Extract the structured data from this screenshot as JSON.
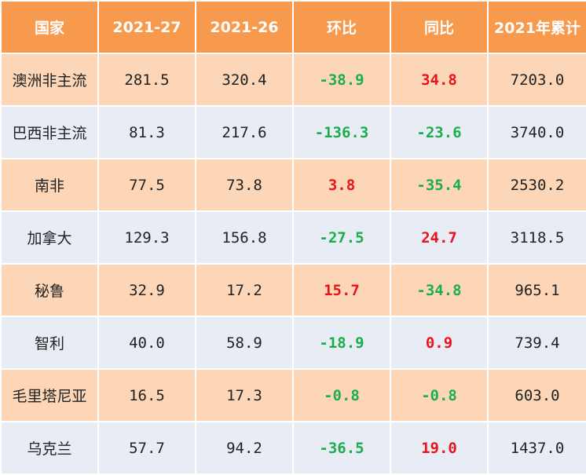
{
  "headers": [
    "国家",
    "2021-27",
    "2021-26",
    "环比",
    "同比",
    "2021年累计"
  ],
  "rows": [
    {
      "country": "澳洲非主流",
      "w27": "281.5",
      "w26": "320.4",
      "mom": "-38.9",
      "yoy": "34.8",
      "ytd": "7203.0"
    },
    {
      "country": "巴西非主流",
      "w27": "81.3",
      "w26": "217.6",
      "mom": "-136.3",
      "yoy": "-23.6",
      "ytd": "3740.0"
    },
    {
      "country": "南非",
      "w27": "77.5",
      "w26": "73.8",
      "mom": "3.8",
      "yoy": "-35.4",
      "ytd": "2530.2"
    },
    {
      "country": "加拿大",
      "w27": "129.3",
      "w26": "156.8",
      "mom": "-27.5",
      "yoy": "24.7",
      "ytd": "3118.5"
    },
    {
      "country": "秘鲁",
      "w27": "32.9",
      "w26": "17.2",
      "mom": "15.7",
      "yoy": "-34.8",
      "ytd": "965.1"
    },
    {
      "country": "智利",
      "w27": "40.0",
      "w26": "58.9",
      "mom": "-18.9",
      "yoy": "0.9",
      "ytd": "739.4"
    },
    {
      "country": "毛里塔尼亚",
      "w27": "16.5",
      "w26": "17.3",
      "mom": "-0.8",
      "yoy": "-0.8",
      "ytd": "603.0"
    },
    {
      "country": "乌克兰",
      "w27": "57.7",
      "w26": "94.2",
      "mom": "-36.5",
      "yoy": "19.0",
      "ytd": "1437.0"
    }
  ],
  "colors": {
    "header_bg": "#f79a4d",
    "row_odd_bg": "#fcd6b6",
    "row_even_bg": "#e8ecf4",
    "positive": "#e8141b",
    "negative": "#1aae4c"
  }
}
